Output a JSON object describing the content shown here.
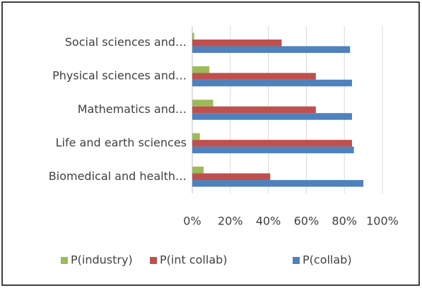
{
  "chart_data": {
    "type": "hbar",
    "categories": [
      "Biomedical and health…",
      "Life and earth sciences",
      "Mathematics and…",
      "Physical sciences and…",
      "Social sciences and…"
    ],
    "series": [
      {
        "name": "P(industry)",
        "color": "#9bbb59",
        "values": [
          6,
          4,
          11,
          9,
          1
        ]
      },
      {
        "name": "P(int collab)",
        "color": "#c0504d",
        "values": [
          41,
          84,
          65,
          65,
          47
        ]
      },
      {
        "name": "P(collab)",
        "color": "#4f81bd",
        "values": [
          90,
          85,
          84,
          84,
          83
        ]
      }
    ],
    "xlim": [
      0,
      100
    ],
    "xticks": [
      {
        "value": 0,
        "label": "0%"
      },
      {
        "value": 20,
        "label": "20%"
      },
      {
        "value": 40,
        "label": "40%"
      },
      {
        "value": 60,
        "label": "60%"
      },
      {
        "value": 80,
        "label": "80%"
      },
      {
        "value": 100,
        "label": "100%"
      }
    ],
    "grid": true,
    "legend": "bottom"
  }
}
